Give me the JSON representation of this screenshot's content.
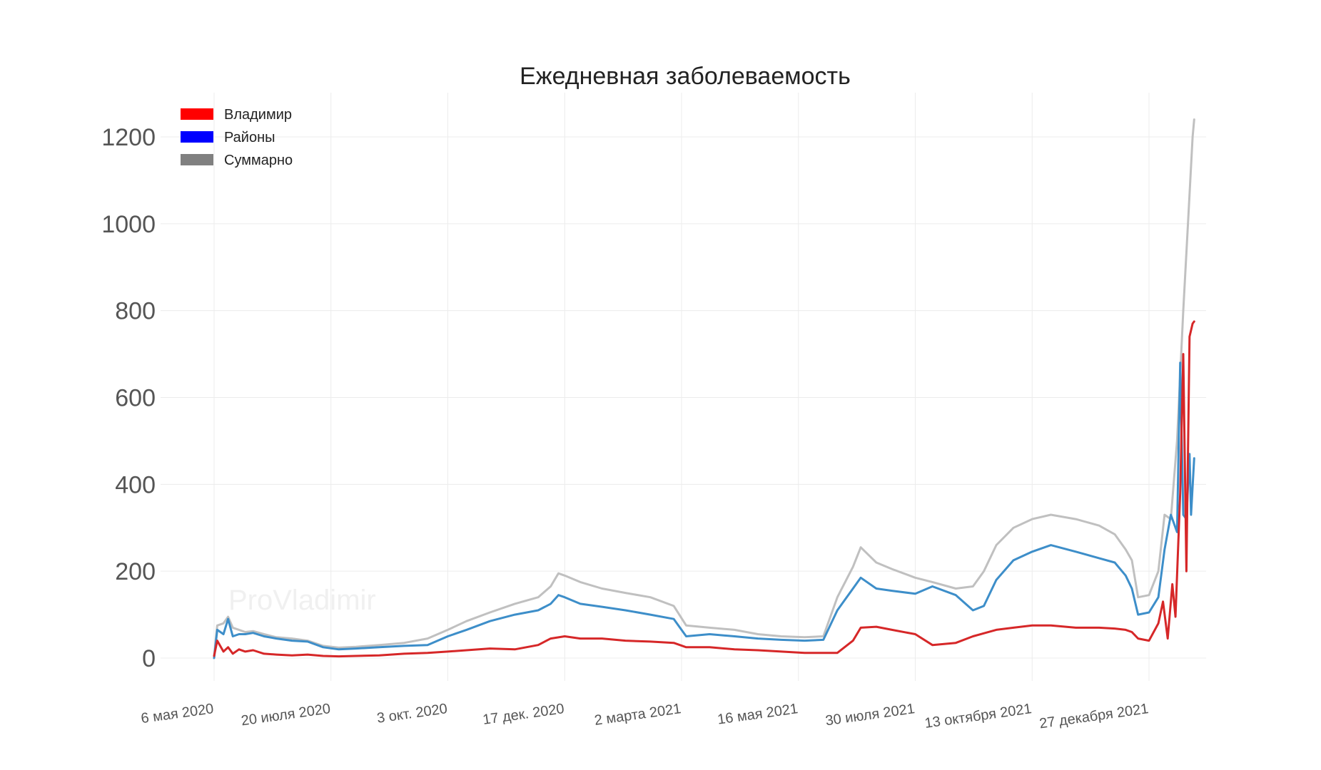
{
  "chart_data": {
    "type": "line",
    "title": "Ежедневная заболеваемость",
    "xlabel": "",
    "ylabel": "",
    "ylim": [
      -50,
      1300
    ],
    "yticks": [
      0,
      200,
      400,
      600,
      800,
      1000,
      1200
    ],
    "xticks": [
      "6 мая 2020",
      "20 июля 2020",
      "3 окт. 2020",
      "17 дек. 2020",
      "2 марта 2021",
      "16 мая 2021",
      "30 июля 2021",
      "13 октября 2021",
      "27 декабря 2021"
    ],
    "xtick_dates": [
      "2020-05-06",
      "2020-07-20",
      "2020-10-03",
      "2020-12-17",
      "2021-03-02",
      "2021-05-16",
      "2021-07-30",
      "2021-10-13",
      "2021-12-27"
    ],
    "x_date_range": [
      "2020-05-06",
      "2022-01-25"
    ],
    "grid": true,
    "legend_placement": "top-left",
    "watermark": "ProVladimir",
    "legend": [
      {
        "name": "Владимир",
        "swatch_color": "#ff0000"
      },
      {
        "name": "Районы",
        "swatch_color": "#0000ff"
      },
      {
        "name": "Суммарно",
        "swatch_color": "#808080"
      }
    ],
    "series": [
      {
        "name": "Суммарно",
        "color": "#c0c0c0",
        "x": [
          "2020-05-06",
          "2020-05-08",
          "2020-05-12",
          "2020-05-15",
          "2020-05-18",
          "2020-05-22",
          "2020-05-26",
          "2020-05-31",
          "2020-06-07",
          "2020-06-15",
          "2020-06-25",
          "2020-07-05",
          "2020-07-15",
          "2020-07-25",
          "2020-08-05",
          "2020-08-20",
          "2020-09-05",
          "2020-09-20",
          "2020-10-03",
          "2020-10-15",
          "2020-10-30",
          "2020-11-15",
          "2020-11-30",
          "2020-12-08",
          "2020-12-13",
          "2020-12-17",
          "2020-12-27",
          "2021-01-10",
          "2021-01-25",
          "2021-02-10",
          "2021-02-25",
          "2021-03-05",
          "2021-03-20",
          "2021-04-05",
          "2021-04-20",
          "2021-05-05",
          "2021-05-20",
          "2021-06-01",
          "2021-06-10",
          "2021-06-20",
          "2021-06-25",
          "2021-07-05",
          "2021-07-15",
          "2021-07-30",
          "2021-08-10",
          "2021-08-25",
          "2021-09-05",
          "2021-09-12",
          "2021-09-20",
          "2021-10-01",
          "2021-10-13",
          "2021-10-25",
          "2021-11-10",
          "2021-11-25",
          "2021-12-05",
          "2021-12-12",
          "2021-12-16",
          "2021-12-20",
          "2021-12-27",
          "2022-01-02",
          "2022-01-06",
          "2022-01-10",
          "2022-01-14",
          "2022-01-18",
          "2022-01-21",
          "2022-01-24",
          "2022-01-25"
        ],
        "y": [
          5,
          75,
          80,
          95,
          70,
          65,
          60,
          62,
          55,
          48,
          45,
          40,
          28,
          24,
          26,
          30,
          35,
          45,
          65,
          85,
          105,
          125,
          140,
          165,
          195,
          190,
          175,
          160,
          150,
          140,
          120,
          75,
          70,
          65,
          55,
          50,
          48,
          50,
          140,
          210,
          255,
          220,
          205,
          185,
          175,
          160,
          165,
          200,
          260,
          300,
          320,
          330,
          320,
          305,
          285,
          250,
          225,
          140,
          145,
          200,
          330,
          320,
          500,
          800,
          1000,
          1200,
          1240
        ]
      },
      {
        "name": "Районы",
        "color": "#3d8ec9",
        "x": [
          "2020-05-06",
          "2020-05-08",
          "2020-05-12",
          "2020-05-15",
          "2020-05-18",
          "2020-05-22",
          "2020-05-26",
          "2020-05-31",
          "2020-06-07",
          "2020-06-15",
          "2020-06-25",
          "2020-07-05",
          "2020-07-15",
          "2020-07-25",
          "2020-08-05",
          "2020-08-20",
          "2020-09-05",
          "2020-09-20",
          "2020-10-03",
          "2020-10-15",
          "2020-10-30",
          "2020-11-15",
          "2020-11-30",
          "2020-12-08",
          "2020-12-13",
          "2020-12-17",
          "2020-12-27",
          "2021-01-10",
          "2021-01-25",
          "2021-02-10",
          "2021-02-25",
          "2021-03-05",
          "2021-03-20",
          "2021-04-05",
          "2021-04-20",
          "2021-05-05",
          "2021-05-20",
          "2021-06-01",
          "2021-06-10",
          "2021-06-20",
          "2021-06-25",
          "2021-07-05",
          "2021-07-15",
          "2021-07-30",
          "2021-08-10",
          "2021-08-25",
          "2021-09-05",
          "2021-09-12",
          "2021-09-20",
          "2021-10-01",
          "2021-10-13",
          "2021-10-25",
          "2021-11-10",
          "2021-11-25",
          "2021-12-05",
          "2021-12-12",
          "2021-12-16",
          "2021-12-20",
          "2021-12-27",
          "2022-01-02",
          "2022-01-06",
          "2022-01-10",
          "2022-01-14",
          "2022-01-16",
          "2022-01-18",
          "2022-01-20",
          "2022-01-22",
          "2022-01-23",
          "2022-01-25"
        ],
        "y": [
          0,
          65,
          55,
          90,
          50,
          55,
          55,
          58,
          50,
          45,
          40,
          38,
          25,
          20,
          22,
          25,
          28,
          30,
          50,
          65,
          85,
          100,
          110,
          125,
          145,
          140,
          125,
          118,
          110,
          100,
          90,
          50,
          55,
          50,
          45,
          42,
          40,
          42,
          110,
          160,
          185,
          160,
          155,
          148,
          165,
          145,
          110,
          120,
          180,
          225,
          245,
          260,
          245,
          230,
          220,
          190,
          160,
          100,
          105,
          140,
          250,
          330,
          290,
          680,
          330,
          320,
          470,
          330,
          460
        ]
      },
      {
        "name": "Владимир",
        "color": "#d62728",
        "x": [
          "2020-05-06",
          "2020-05-08",
          "2020-05-12",
          "2020-05-15",
          "2020-05-18",
          "2020-05-22",
          "2020-05-26",
          "2020-05-31",
          "2020-06-07",
          "2020-06-15",
          "2020-06-25",
          "2020-07-05",
          "2020-07-15",
          "2020-07-25",
          "2020-08-05",
          "2020-08-20",
          "2020-09-05",
          "2020-09-20",
          "2020-10-03",
          "2020-10-15",
          "2020-10-30",
          "2020-11-15",
          "2020-11-30",
          "2020-12-08",
          "2020-12-17",
          "2020-12-27",
          "2021-01-10",
          "2021-01-25",
          "2021-02-10",
          "2021-02-25",
          "2021-03-05",
          "2021-03-20",
          "2021-04-05",
          "2021-04-20",
          "2021-05-05",
          "2021-05-20",
          "2021-06-01",
          "2021-06-10",
          "2021-06-20",
          "2021-06-25",
          "2021-07-05",
          "2021-07-15",
          "2021-07-30",
          "2021-08-10",
          "2021-08-25",
          "2021-09-05",
          "2021-09-20",
          "2021-10-01",
          "2021-10-13",
          "2021-10-25",
          "2021-11-10",
          "2021-11-25",
          "2021-12-05",
          "2021-12-12",
          "2021-12-16",
          "2021-12-20",
          "2021-12-27",
          "2022-01-02",
          "2022-01-05",
          "2022-01-08",
          "2022-01-11",
          "2022-01-13",
          "2022-01-16",
          "2022-01-18",
          "2022-01-20",
          "2022-01-22",
          "2022-01-24",
          "2022-01-25"
        ],
        "y": [
          5,
          40,
          15,
          25,
          10,
          20,
          15,
          18,
          10,
          8,
          6,
          8,
          5,
          4,
          5,
          6,
          10,
          12,
          15,
          18,
          22,
          20,
          30,
          45,
          50,
          45,
          45,
          40,
          38,
          35,
          25,
          25,
          20,
          18,
          15,
          12,
          12,
          12,
          40,
          70,
          72,
          65,
          55,
          30,
          35,
          50,
          65,
          70,
          75,
          75,
          70,
          70,
          68,
          65,
          60,
          45,
          40,
          80,
          130,
          45,
          170,
          95,
          380,
          700,
          200,
          740,
          770,
          775
        ]
      }
    ]
  }
}
